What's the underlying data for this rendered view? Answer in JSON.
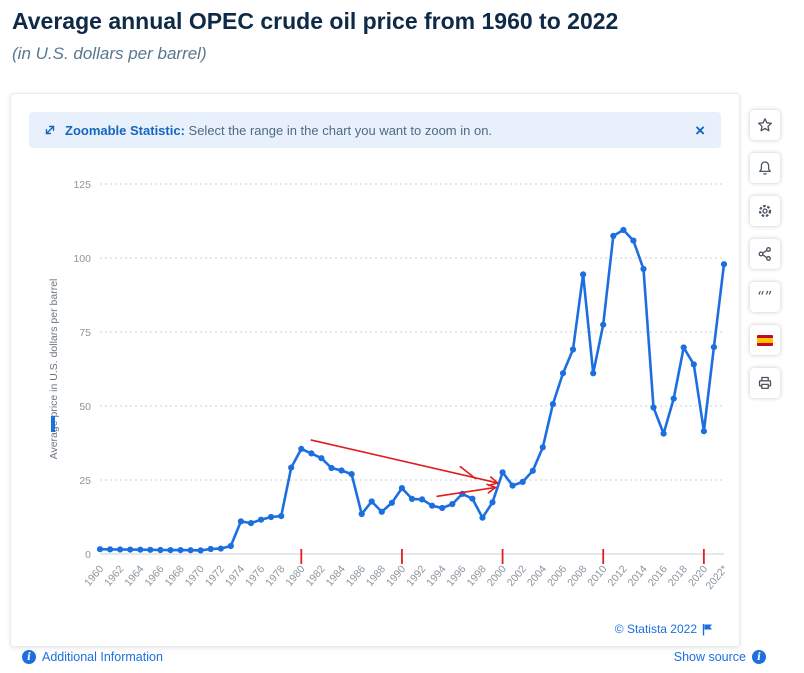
{
  "header": {
    "title": "Average annual OPEC crude oil price from 1960 to 2022",
    "subtitle": "(in U.S. dollars per barrel)"
  },
  "banner": {
    "bold": "Zoomable Statistic:",
    "text": " Select the range in the chart you want to zoom in on.",
    "close": "×"
  },
  "toolbar": {
    "items": [
      "star-icon",
      "bell-icon",
      "gear-icon",
      "share-icon",
      "quote-icon",
      "spain-flag-icon",
      "print-icon"
    ]
  },
  "chart_data": {
    "type": "line",
    "title": "Average annual OPEC crude oil price from 1960 to 2022",
    "ylabel": "Average price in U.S. dollars per barrel",
    "xlabel": "",
    "ylim": [
      0,
      125
    ],
    "yticks": [
      0,
      25,
      50,
      75,
      100,
      125
    ],
    "grid": true,
    "line_color": "#1d6fe0",
    "annotation_color": "#e11d1d",
    "x": [
      1960,
      1961,
      1962,
      1963,
      1964,
      1965,
      1966,
      1967,
      1968,
      1969,
      1970,
      1971,
      1972,
      1973,
      1974,
      1975,
      1976,
      1977,
      1978,
      1979,
      1980,
      1981,
      1982,
      1983,
      1984,
      1985,
      1986,
      1987,
      1988,
      1989,
      1990,
      1991,
      1992,
      1993,
      1994,
      1995,
      1996,
      1997,
      1998,
      1999,
      2000,
      2001,
      2002,
      2003,
      2004,
      2005,
      2006,
      2007,
      2008,
      2009,
      2010,
      2011,
      2012,
      2013,
      2014,
      2015,
      2016,
      2017,
      2018,
      2019,
      2020,
      2021,
      2022
    ],
    "values": [
      1.63,
      1.57,
      1.52,
      1.5,
      1.45,
      1.42,
      1.36,
      1.33,
      1.32,
      1.27,
      1.21,
      1.7,
      1.82,
      2.7,
      11.0,
      10.43,
      11.6,
      12.5,
      12.79,
      29.19,
      35.52,
      34.0,
      32.38,
      29.04,
      28.2,
      27.01,
      13.53,
      17.73,
      14.24,
      17.31,
      22.26,
      18.62,
      18.44,
      16.33,
      15.53,
      16.86,
      20.29,
      18.68,
      12.28,
      17.48,
      27.6,
      23.12,
      24.36,
      28.1,
      36.05,
      50.64,
      61.08,
      69.08,
      94.45,
      61.06,
      77.45,
      107.46,
      109.45,
      105.87,
      96.29,
      49.49,
      40.68,
      52.51,
      69.78,
      64.04,
      41.47,
      69.89,
      97.9
    ],
    "x_tick_labels": [
      "1960",
      "1962",
      "1964",
      "1966",
      "1968",
      "1970",
      "1972",
      "1974",
      "1976",
      "1978",
      "1980",
      "1982",
      "1984",
      "1986",
      "1988",
      "1990",
      "1992",
      "1994",
      "1996",
      "1998",
      "2000",
      "2002",
      "2004",
      "2006",
      "2008",
      "2010",
      "2012",
      "2014",
      "2016",
      "2018",
      "2020",
      "2022*"
    ],
    "annotations": [
      {
        "from": [
          1981,
          38.5
        ],
        "to": [
          1999.5,
          24
        ],
        "arrow": true
      },
      {
        "from": [
          1993.5,
          19.5
        ],
        "to": [
          1999.3,
          22.5
        ],
        "arrow": true
      },
      {
        "from": [
          1995.8,
          29.5
        ],
        "to": [
          1997.3,
          25.5
        ],
        "arrow": false
      }
    ],
    "red_axis_marks": [
      1980,
      1990,
      2000,
      2010,
      2020
    ]
  },
  "footer": {
    "statista": "© Statista 2022",
    "additional": "Additional Information",
    "show_source": "Show source",
    "info_glyph": "i"
  }
}
